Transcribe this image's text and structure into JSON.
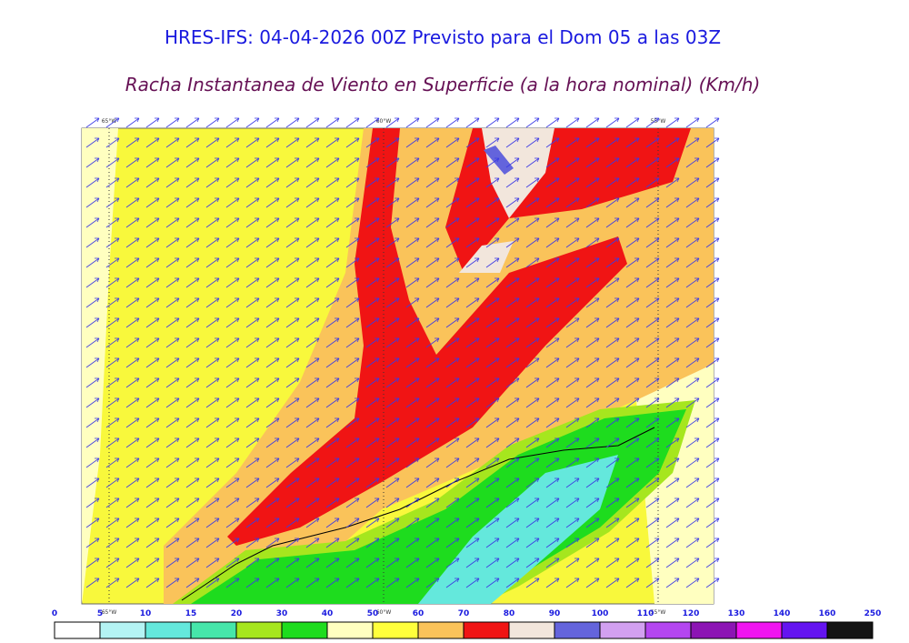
{
  "header": {
    "title": "HRES-IFS: 04-04-2026 00Z Previsto para el Dom 05 a las 03Z",
    "subtitle": "Racha Instantanea de Viento en Superficie (a la hora nominal) (Km/h)"
  },
  "map": {
    "longitude_labels": [
      "65°W",
      "60°W",
      "55°W"
    ]
  },
  "legend": {
    "ticks": [
      0,
      5,
      10,
      15,
      20,
      30,
      40,
      50,
      60,
      70,
      80,
      90,
      100,
      110,
      120,
      130,
      140,
      160,
      250
    ],
    "colors": [
      "#ffffff",
      "#b4f4f4",
      "#64e8dc",
      "#46e6aa",
      "#a6e61e",
      "#1edc1e",
      "#ffffc0",
      "#ffff3c",
      "#fac35a",
      "#f01414",
      "#f2e6dc",
      "#6464dc",
      "#d2a0f0",
      "#b446f0",
      "#8c14b4",
      "#f014f0",
      "#6414f0",
      "#141414"
    ]
  }
}
